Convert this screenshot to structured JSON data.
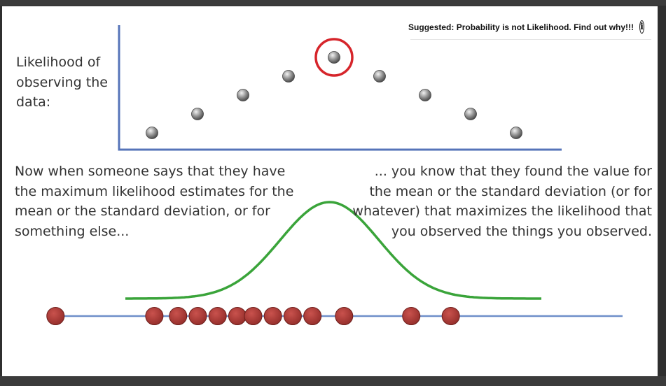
{
  "suggestion": {
    "text": "Suggested: Probability is not Likelihood. Find out why!!!",
    "icon": "info-icon"
  },
  "slide": {
    "y_axis_label": "Likelihood of observing the data:",
    "left_text": "Now when someone says that they have the maximum likelihood estimates for the mean or the standard deviation, or for something else...",
    "right_text": "... you know that they found the value for the mean or the standard deviation (or for whatever) that maximizes the likelihood that you observed the things you observed."
  },
  "colors": {
    "axis": "#5674b9",
    "point": "#8a8a8a",
    "highlight_ring": "#d6252b",
    "curve": "#3aa43a",
    "observation": "#b23a36",
    "number_line": "#6f8fc9"
  },
  "chart_data": {
    "type": "scatter",
    "x": [
      1,
      2,
      3,
      4,
      5,
      6,
      7,
      8,
      9
    ],
    "values": [
      1.0,
      2.0,
      3.0,
      4.0,
      5.0,
      4.0,
      3.0,
      2.0,
      1.0
    ],
    "highlight_index": 4,
    "observations": [
      0.02,
      0.27,
      0.33,
      0.38,
      0.43,
      0.48,
      0.52,
      0.57,
      0.62,
      0.67,
      0.75,
      0.92,
      1.02
    ],
    "curve_center": 0.485,
    "curve_spread": 0.085
  }
}
